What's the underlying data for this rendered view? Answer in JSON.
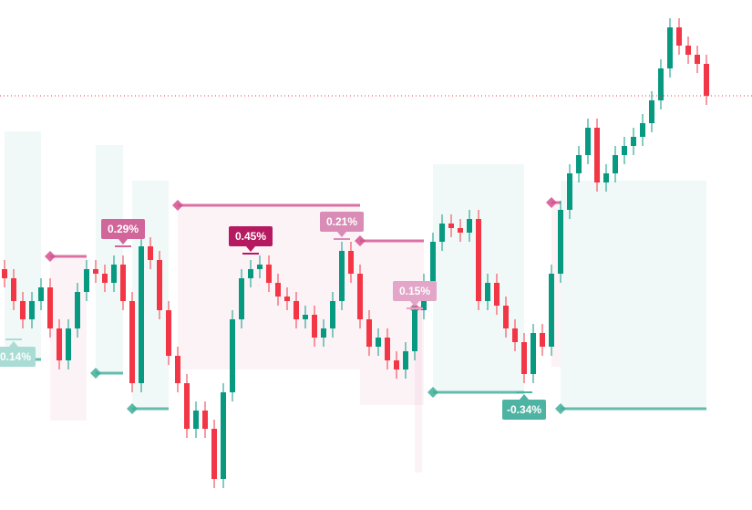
{
  "chart_data": {
    "type": "candlestick",
    "ylim": [
      0,
      559
    ],
    "up_color": "#089981",
    "down_color": "#f23645",
    "high_color": "#d4508e",
    "low_color": "#3fae98",
    "open": [
      264,
      254,
      229,
      209,
      229,
      244,
      199,
      164,
      199,
      239,
      264,
      259,
      249,
      269,
      229,
      139,
      289,
      274,
      219,
      169,
      139,
      89,
      109,
      89,
      34,
      129,
      209,
      254,
      264,
      269,
      249,
      234,
      229,
      209,
      214,
      189,
      199,
      229,
      284,
      259,
      209,
      179,
      189,
      164,
      154,
      174,
      219,
      249,
      294,
      314,
      309,
      304,
      319,
      229,
      249,
      224,
      199,
      184,
      149,
      194,
      179,
      259,
      329,
      369,
      389,
      419,
      359,
      369,
      389,
      399,
      409,
      424,
      449,
      484,
      529,
      509,
      499,
      489
    ],
    "high": [
      274,
      264,
      239,
      239,
      254,
      254,
      209,
      209,
      249,
      274,
      274,
      269,
      279,
      279,
      239,
      299,
      299,
      284,
      229,
      179,
      149,
      119,
      119,
      99,
      139,
      219,
      264,
      274,
      279,
      279,
      259,
      244,
      239,
      224,
      224,
      209,
      239,
      294,
      294,
      269,
      219,
      199,
      199,
      174,
      184,
      229,
      259,
      304,
      324,
      324,
      319,
      329,
      329,
      259,
      259,
      234,
      209,
      194,
      204,
      204,
      269,
      339,
      379,
      399,
      429,
      429,
      379,
      399,
      409,
      419,
      434,
      459,
      494,
      539,
      539,
      519,
      509,
      499
    ],
    "low": [
      244,
      219,
      199,
      199,
      219,
      189,
      154,
      154,
      189,
      229,
      249,
      239,
      239,
      219,
      129,
      129,
      264,
      209,
      159,
      129,
      79,
      79,
      79,
      24,
      24,
      119,
      199,
      244,
      254,
      239,
      224,
      219,
      199,
      199,
      179,
      179,
      189,
      219,
      249,
      199,
      169,
      169,
      154,
      144,
      144,
      164,
      209,
      239,
      284,
      299,
      294,
      294,
      219,
      219,
      214,
      189,
      174,
      139,
      139,
      169,
      169,
      249,
      319,
      359,
      379,
      349,
      349,
      359,
      379,
      389,
      399,
      414,
      439,
      474,
      499,
      489,
      479,
      444
    ],
    "close": [
      254,
      229,
      209,
      229,
      244,
      199,
      164,
      199,
      239,
      264,
      259,
      249,
      269,
      229,
      139,
      289,
      274,
      219,
      169,
      139,
      89,
      109,
      89,
      34,
      129,
      209,
      254,
      264,
      269,
      249,
      234,
      229,
      209,
      214,
      189,
      199,
      229,
      284,
      259,
      209,
      179,
      189,
      164,
      154,
      174,
      219,
      249,
      294,
      314,
      309,
      304,
      319,
      229,
      249,
      224,
      199,
      184,
      149,
      194,
      179,
      259,
      329,
      369,
      389,
      419,
      359,
      369,
      389,
      399,
      409,
      424,
      449,
      484,
      529,
      509,
      499,
      489,
      454
    ],
    "pivots": [
      {
        "kind": "high",
        "from": 5,
        "to": 9,
        "level": 278,
        "label": "0.29%",
        "label_at": 13,
        "label_level": 289,
        "color": "#d0669a"
      },
      {
        "kind": "high",
        "from": 19,
        "to": 39,
        "level": 334,
        "label": "0.45%",
        "label_at": 27,
        "label_level": 281,
        "color": "#b5195f"
      },
      {
        "kind": "high",
        "from": 39,
        "to": 46,
        "level": 295,
        "label": "0.21%",
        "label_at": 37,
        "label_level": 297,
        "color": "#d98cb5"
      },
      {
        "kind": "high",
        "from": 45,
        "to": 45,
        "level": 221,
        "label": "0.15%",
        "label_at": 45,
        "label_level": 221,
        "color": "#e3a5c8"
      },
      {
        "kind": "low",
        "from": 0,
        "to": 4,
        "level": 165,
        "label": "-0.14%",
        "label_at": 1,
        "label_level": 187,
        "color": "#a8dcd4"
      },
      {
        "kind": "low",
        "from": 10,
        "to": 13,
        "level": 150
      },
      {
        "kind": "low",
        "from": 14,
        "to": 18,
        "level": 111
      },
      {
        "kind": "low",
        "from": 47,
        "to": 57,
        "level": 129,
        "label": "-0.34%",
        "label_at": 57,
        "label_level": 129,
        "color": "#4fb3a3"
      },
      {
        "kind": "low",
        "from": 61,
        "to": 77,
        "level": 111
      },
      {
        "kind": "high",
        "from": 60,
        "to": 61,
        "level": 337
      }
    ]
  }
}
